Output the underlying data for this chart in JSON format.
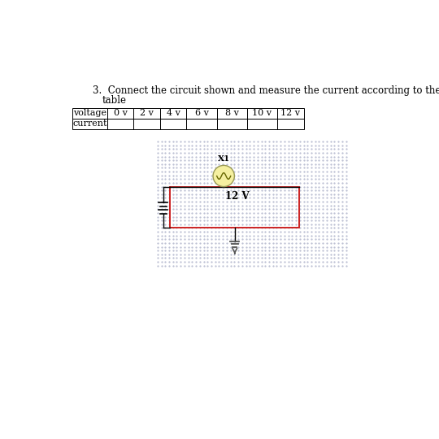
{
  "title_line1": "3.  Connect the circuit shown and measure the current according to the",
  "title_line2": "table",
  "table_headers": [
    "voltage",
    "0 v",
    "2 v",
    "4 v",
    "6 v",
    "8 v",
    "10 v",
    "12 v"
  ],
  "table_row2": [
    "current",
    "",
    "",
    "",
    "",
    "",
    "",
    ""
  ],
  "bg_color": "#ffffff",
  "dot_color": "#b8bcd0",
  "circuit_rect_color": "#cc2222",
  "bulb_label": "X1",
  "voltage_label": "12 V",
  "title_fontsize": 8.5,
  "table_fontsize": 8.0
}
